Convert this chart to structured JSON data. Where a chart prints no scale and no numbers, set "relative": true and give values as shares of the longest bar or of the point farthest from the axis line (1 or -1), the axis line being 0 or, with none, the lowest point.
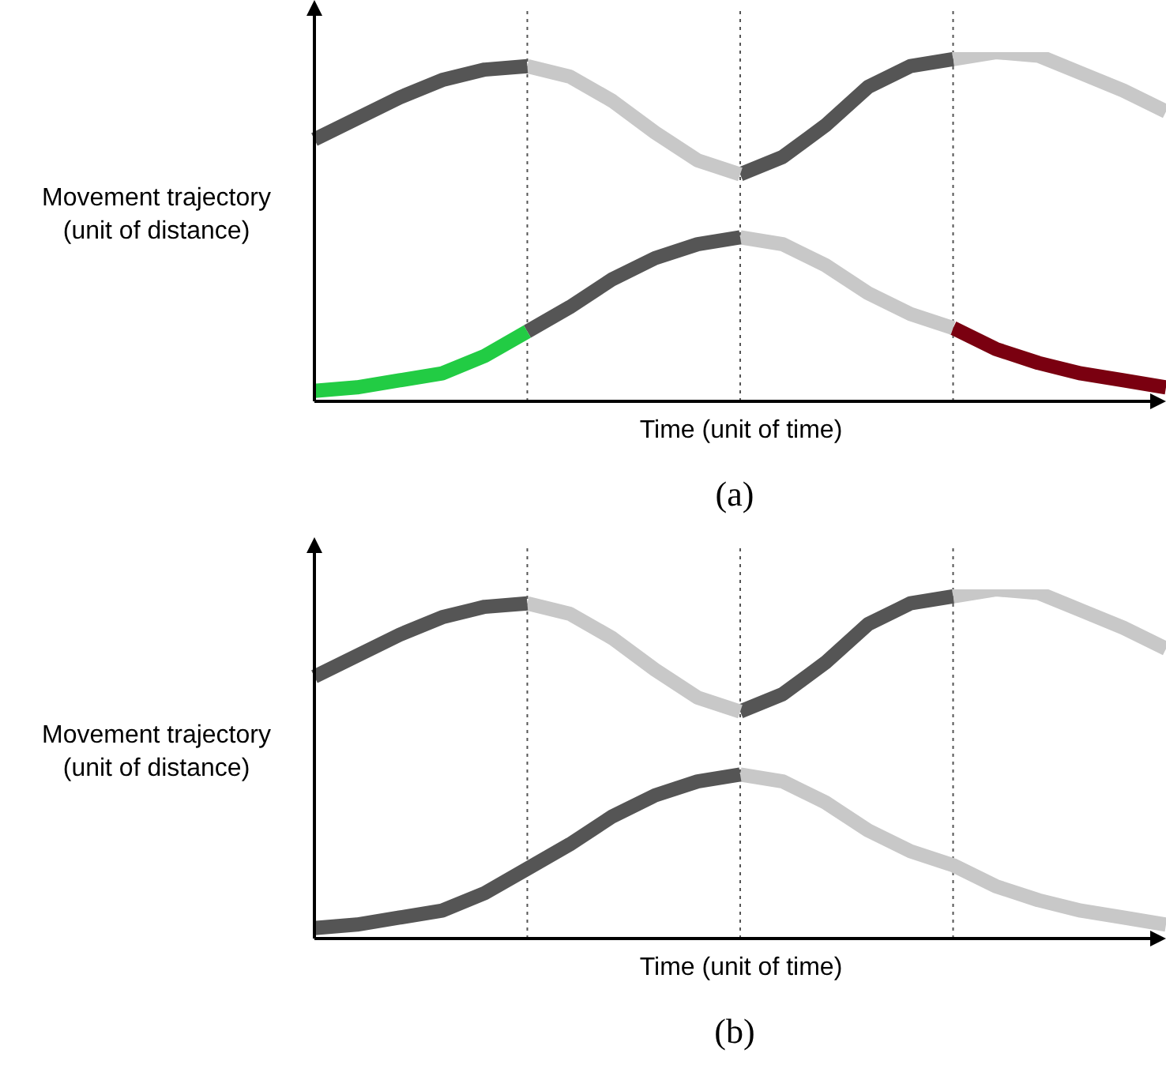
{
  "chart_data": [
    {
      "type": "line",
      "relative": true,
      "ylabel": "Movement trajectory (unit of distance)",
      "xlabel": "Time (unit of time)",
      "annotations": [
        "(a)"
      ],
      "grid": "x",
      "tick_labels": false,
      "marker": "none",
      "line_style": "solid",
      "categories": [
        null,
        null,
        null,
        null,
        null,
        null,
        null,
        null,
        null,
        null,
        null,
        null,
        null,
        null,
        null,
        null,
        null,
        null,
        null,
        null,
        null
      ],
      "series": [
        {
          "color": "#555555",
          "values": [
            0.75,
            0.81,
            0.87,
            0.92,
            0.95,
            0.96,
            null,
            null,
            null,
            null,
            null,
            null,
            null,
            null,
            null,
            null,
            null,
            null,
            null,
            null,
            null
          ]
        },
        {
          "color": "#c8c8c8",
          "values": [
            null,
            null,
            null,
            null,
            null,
            0.96,
            0.93,
            0.86,
            0.77,
            0.69,
            0.65,
            null,
            null,
            null,
            null,
            null,
            null,
            null,
            null,
            null,
            null
          ]
        },
        {
          "color": "#555555",
          "values": [
            null,
            null,
            null,
            null,
            null,
            null,
            null,
            null,
            null,
            null,
            0.65,
            0.7,
            0.79,
            0.9,
            0.96,
            0.98,
            null,
            null,
            null,
            null,
            null
          ]
        },
        {
          "color": "#c8c8c8",
          "values": [
            null,
            null,
            null,
            null,
            null,
            null,
            null,
            null,
            null,
            null,
            null,
            null,
            null,
            null,
            null,
            0.98,
            1.0,
            0.99,
            0.94,
            0.89,
            0.83
          ]
        },
        {
          "color": "#22cc44",
          "values": [
            0.03,
            0.04,
            0.06,
            0.08,
            0.13,
            0.2,
            null,
            null,
            null,
            null,
            null,
            null,
            null,
            null,
            null,
            null,
            null,
            null,
            null,
            null,
            null
          ]
        },
        {
          "color": "#555555",
          "values": [
            null,
            null,
            null,
            null,
            null,
            0.2,
            0.27,
            0.35,
            0.41,
            0.45,
            0.47,
            null,
            null,
            null,
            null,
            null,
            null,
            null,
            null,
            null,
            null
          ]
        },
        {
          "color": "#c8c8c8",
          "values": [
            null,
            null,
            null,
            null,
            null,
            null,
            null,
            null,
            null,
            null,
            0.47,
            0.45,
            0.39,
            0.31,
            0.25,
            0.21,
            null,
            null,
            null,
            null,
            null
          ]
        },
        {
          "color": "#7a0010",
          "values": [
            null,
            null,
            null,
            null,
            null,
            null,
            null,
            null,
            null,
            null,
            null,
            null,
            null,
            null,
            null,
            0.21,
            0.15,
            0.11,
            0.08,
            0.06,
            0.04
          ]
        }
      ]
    },
    {
      "type": "line",
      "relative": true,
      "ylabel": "Movement trajectory (unit of distance)",
      "xlabel": "Time (unit of time)",
      "annotations": [
        "(b)"
      ],
      "grid": "x",
      "tick_labels": false,
      "marker": "none",
      "line_style": "solid",
      "categories": [
        null,
        null,
        null,
        null,
        null,
        null,
        null,
        null,
        null,
        null,
        null,
        null,
        null,
        null,
        null,
        null,
        null,
        null,
        null,
        null,
        null
      ],
      "series": [
        {
          "color": "#555555",
          "values": [
            0.75,
            0.81,
            0.87,
            0.92,
            0.95,
            0.96,
            null,
            null,
            null,
            null,
            null,
            null,
            null,
            null,
            null,
            null,
            null,
            null,
            null,
            null,
            null
          ]
        },
        {
          "color": "#c8c8c8",
          "values": [
            null,
            null,
            null,
            null,
            null,
            0.96,
            0.93,
            0.86,
            0.77,
            0.69,
            0.65,
            null,
            null,
            null,
            null,
            null,
            null,
            null,
            null,
            null,
            null
          ]
        },
        {
          "color": "#555555",
          "values": [
            null,
            null,
            null,
            null,
            null,
            null,
            null,
            null,
            null,
            null,
            0.65,
            0.7,
            0.79,
            0.9,
            0.96,
            0.98,
            null,
            null,
            null,
            null,
            null
          ]
        },
        {
          "color": "#c8c8c8",
          "values": [
            null,
            null,
            null,
            null,
            null,
            null,
            null,
            null,
            null,
            null,
            null,
            null,
            null,
            null,
            null,
            0.98,
            1.0,
            0.99,
            0.94,
            0.89,
            0.83
          ]
        },
        {
          "color": "#555555",
          "values": [
            0.03,
            0.04,
            0.06,
            0.08,
            0.13,
            0.2,
            0.27,
            0.35,
            0.41,
            0.45,
            0.47,
            null,
            null,
            null,
            null,
            null,
            null,
            null,
            null,
            null,
            null
          ]
        },
        {
          "color": "#c8c8c8",
          "values": [
            null,
            null,
            null,
            null,
            null,
            null,
            null,
            null,
            null,
            null,
            0.47,
            0.45,
            0.39,
            0.31,
            0.25,
            0.21,
            0.15,
            0.11,
            0.08,
            0.06,
            0.04
          ]
        }
      ]
    }
  ]
}
